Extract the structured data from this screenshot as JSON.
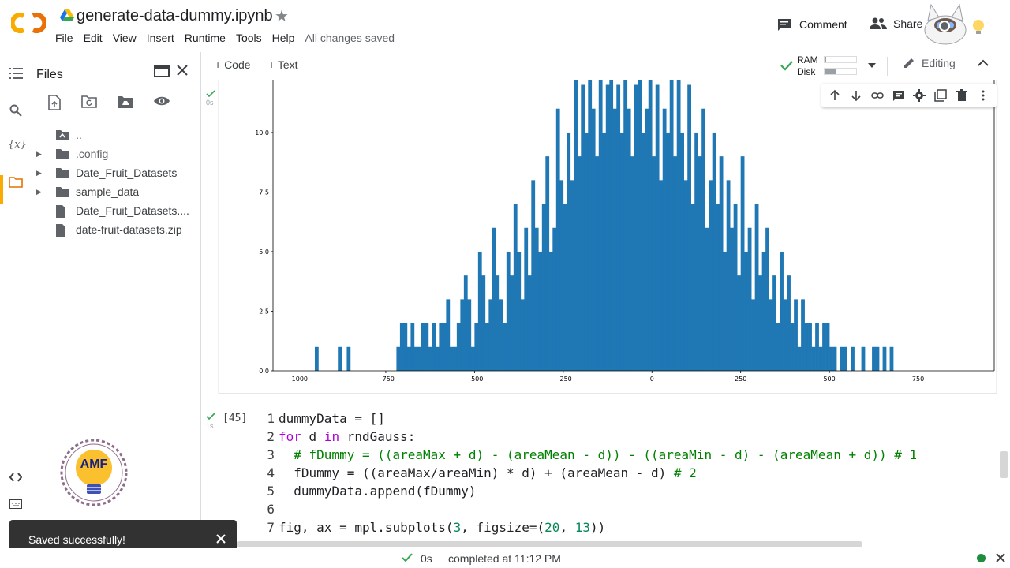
{
  "header": {
    "title": "generate-data-dummy.ipynb",
    "menu": [
      "File",
      "Edit",
      "View",
      "Insert",
      "Runtime",
      "Tools",
      "Help"
    ],
    "saved_status": "All changes saved",
    "comment_label": "Comment",
    "share_label": "Share",
    "logo_text": "CO"
  },
  "files_panel": {
    "title": "Files",
    "items": [
      {
        "label": "..",
        "icon": "folder-up-icon",
        "expandable": false
      },
      {
        "label": ".config",
        "icon": "folder-icon",
        "expandable": true
      },
      {
        "label": "Date_Fruit_Datasets",
        "icon": "folder-icon",
        "expandable": true
      },
      {
        "label": "sample_data",
        "icon": "folder-icon",
        "expandable": true
      },
      {
        "label": "Date_Fruit_Datasets....",
        "icon": "file-icon",
        "expandable": false
      },
      {
        "label": "date-fruit-datasets.zip",
        "icon": "file-icon",
        "expandable": false
      }
    ]
  },
  "toolbar": {
    "code_label": "+ Code",
    "text_label": "+ Text",
    "ram_label": "RAM",
    "disk_label": "Disk",
    "ram_fraction": 0.05,
    "disk_fraction": 0.35,
    "editing_label": "Editing"
  },
  "cell1": {
    "run_status": "0s"
  },
  "cell2": {
    "exec_count": "[45]",
    "run_status": "1s",
    "code_lines": [
      {
        "n": "1",
        "text": "dummyData = []"
      },
      {
        "n": "2",
        "text": "for d in rndGauss:"
      },
      {
        "n": "3",
        "text": "  # fDummy = ((areaMax + d) - (areaMean - d)) - ((areaMin - d) - (areaMean + d)) # 1"
      },
      {
        "n": "4",
        "text": "  fDummy = ((areaMax/areaMin) * d) + (areaMean - d) # 2"
      },
      {
        "n": "5",
        "text": "  dummyData.append(fDummy)"
      },
      {
        "n": "6",
        "text": ""
      },
      {
        "n": "7",
        "text": "fig, ax = mpl.subplots(3, figsize=(20, 13))"
      }
    ]
  },
  "toast": {
    "message": "Saved successfully!"
  },
  "status_bar": {
    "duration": "0s",
    "completed": "completed at 11:12 PM"
  },
  "badge": {
    "text": "AMF"
  },
  "colors": {
    "bar": "#1f77b4",
    "accent": "#f9ab00",
    "check": "#34a853",
    "toast": "#323232"
  },
  "chart_data": {
    "type": "bar",
    "title": "",
    "xlabel": "",
    "ylabel": "",
    "xlim": [
      -1050,
      960
    ],
    "ylim": [
      0,
      14.5
    ],
    "xticks": [
      -1000,
      -750,
      -500,
      -250,
      0,
      250,
      500,
      750
    ],
    "yticks": [
      0.0,
      2.5,
      5.0,
      7.5,
      10.0
    ],
    "bin_start": -720,
    "bin_width": 10,
    "outliers": [
      {
        "x": -950,
        "y": 1
      },
      {
        "x": -885,
        "y": 1
      },
      {
        "x": -860,
        "y": 1
      }
    ],
    "values": [
      1,
      2,
      2,
      1,
      2,
      1,
      1,
      2,
      2,
      1,
      2,
      1,
      2,
      2,
      3,
      1,
      1,
      2,
      3,
      4,
      3,
      1,
      2,
      5,
      4,
      2,
      3,
      6,
      4,
      3,
      2,
      5,
      4,
      7,
      5,
      3,
      6,
      4,
      8,
      6,
      5,
      7,
      9,
      5,
      6,
      11,
      8,
      7,
      10,
      8,
      13,
      9,
      12,
      10,
      15,
      11,
      9,
      13,
      10,
      12,
      14,
      11,
      12,
      10,
      13,
      11,
      9,
      12,
      14,
      10,
      11,
      13,
      9,
      12,
      8,
      11,
      10,
      13,
      9,
      14,
      10,
      8,
      12,
      7,
      10,
      9,
      11,
      6,
      8,
      10,
      7,
      9,
      5,
      8,
      6,
      7,
      4,
      9,
      5,
      6,
      3,
      7,
      4,
      5,
      6,
      3,
      4,
      2,
      5,
      3,
      4,
      2,
      3,
      1,
      3,
      2,
      2,
      1,
      2,
      1,
      2,
      2,
      1,
      1,
      0,
      1,
      1,
      0,
      1,
      0,
      0,
      1,
      0,
      0,
      1,
      1,
      0,
      1,
      0,
      1
    ],
    "series": [
      {
        "values_ref": "values"
      }
    ]
  }
}
